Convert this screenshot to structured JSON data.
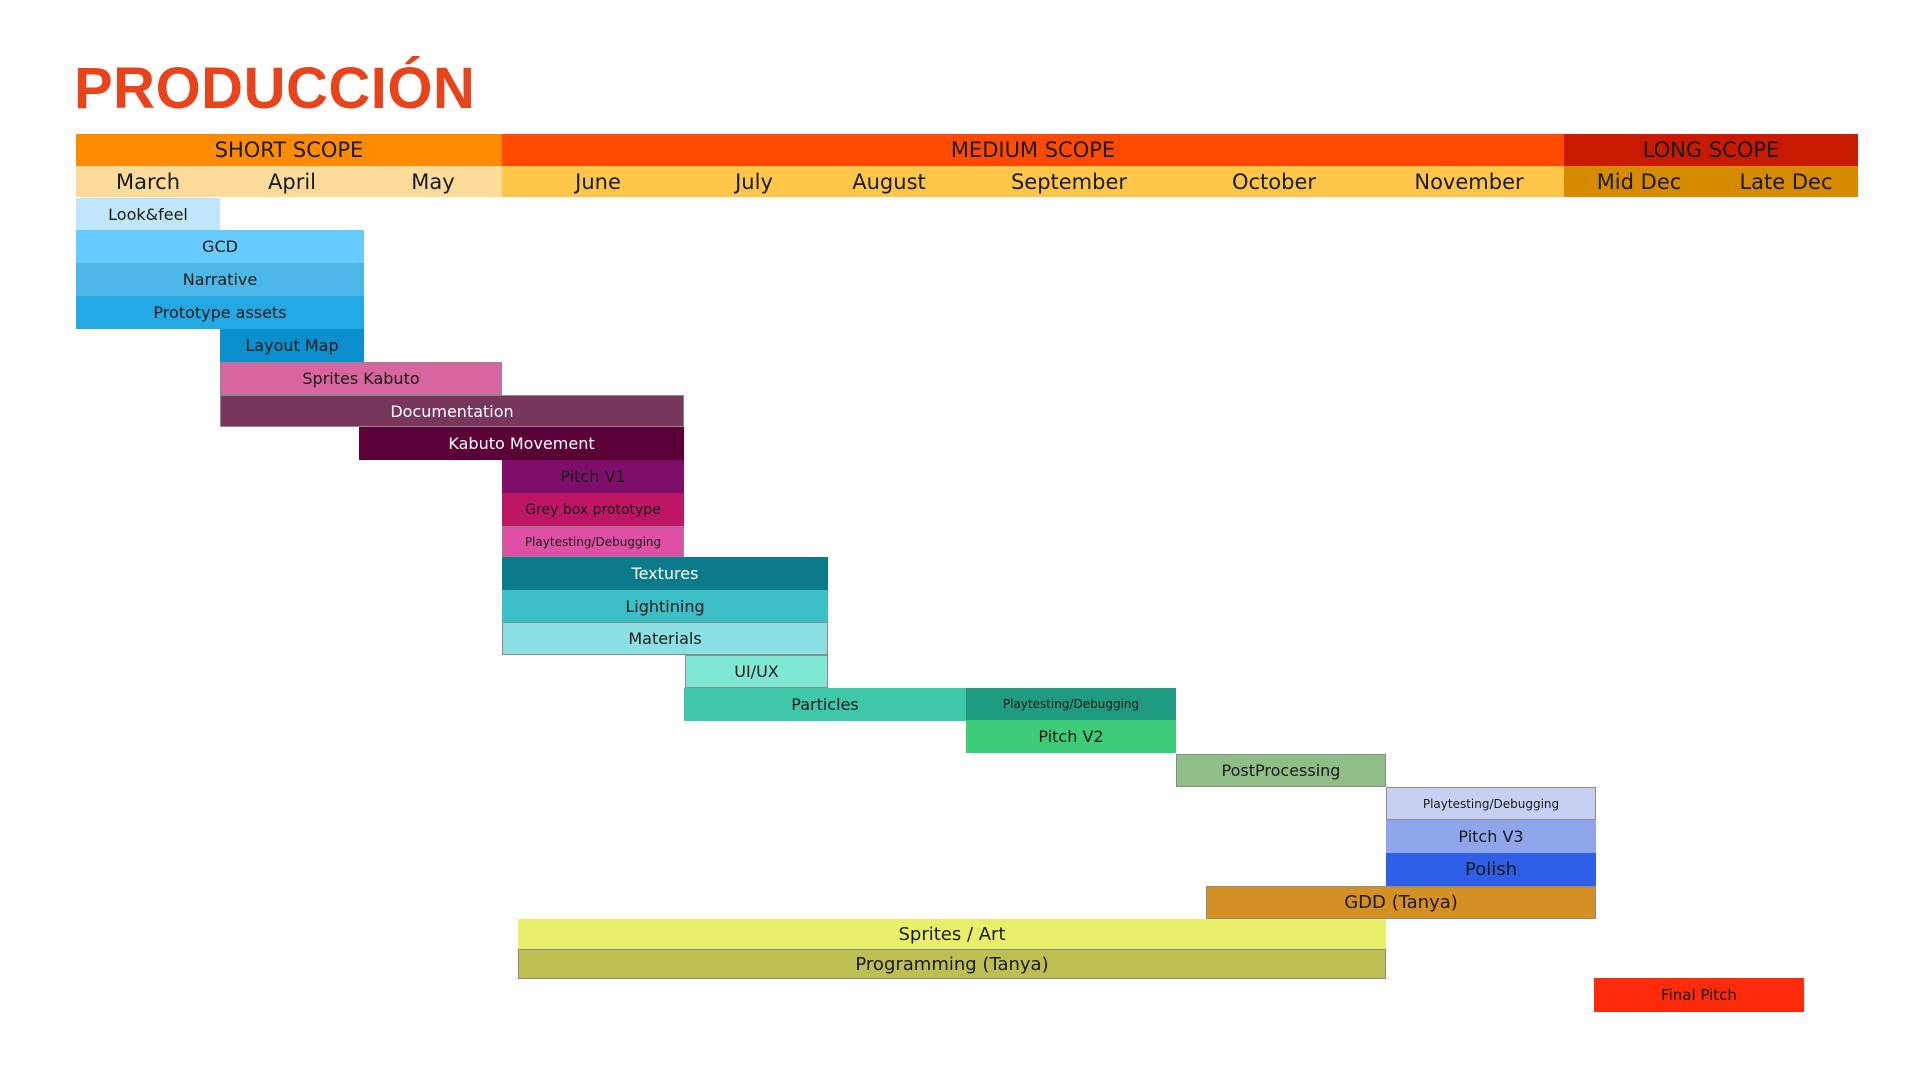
{
  "title": "PRODUCCIÓN",
  "scopes": [
    {
      "label": "SHORT SCOPE",
      "color": "#ff8c00"
    },
    {
      "label": "MEDIUM SCOPE",
      "color": "#ff4a00"
    },
    {
      "label": "LONG SCOPE",
      "color": "#c81a00"
    }
  ],
  "months": [
    {
      "label": "March",
      "color": "#fddc9a"
    },
    {
      "label": "April",
      "color": "#fddc9a"
    },
    {
      "label": "May",
      "color": "#fddc9a"
    },
    {
      "label": "June",
      "color": "#ffc64a"
    },
    {
      "label": "July",
      "color": "#ffc64a"
    },
    {
      "label": "August",
      "color": "#ffc64a"
    },
    {
      "label": "September",
      "color": "#ffc64a"
    },
    {
      "label": "October",
      "color": "#ffc64a"
    },
    {
      "label": "November",
      "color": "#ffc64a"
    },
    {
      "label": "Mid Dec",
      "color": "#d68a00"
    },
    {
      "label": "Late Dec",
      "color": "#d68a00"
    }
  ],
  "tasks": [
    {
      "label": "Look&feel",
      "color": "#bfe6fa",
      "text": "#1a1a1a"
    },
    {
      "label": "GCD",
      "color": "#66ccff",
      "text": "#1a1a1a"
    },
    {
      "label": "Narrative",
      "color": "#4bb8e8",
      "text": "#1a1a1a"
    },
    {
      "label": "Prototype assets",
      "color": "#23a8e3",
      "text": "#1a1a1a"
    },
    {
      "label": "Layout Map",
      "color": "#0a8fcc",
      "text": "#1a1a1a"
    },
    {
      "label": "Sprites Kabuto",
      "color": "#d8659f",
      "text": "#1a1a1a"
    },
    {
      "label": "Documentation",
      "color": "#79365d",
      "text": "#ffffff"
    },
    {
      "label": "Kabuto Movement",
      "color": "#5c0038",
      "text": "#ffffff"
    },
    {
      "label": "Pitch V1",
      "color": "#7e0e6a",
      "text": "#1a1a1a"
    },
    {
      "label": "Grey box prototype",
      "color": "#be1564",
      "text": "#1a1a1a"
    },
    {
      "label": "Playtesting/Debugging",
      "color": "#e04fa6",
      "text": "#1a1a1a"
    },
    {
      "label": "Textures",
      "color": "#0b7a8a",
      "text": "#ffffff"
    },
    {
      "label": "Lightining",
      "color": "#3dbfc8",
      "text": "#1a1a1a"
    },
    {
      "label": "Materials",
      "color": "#8be0e3",
      "text": "#1a1a1a"
    },
    {
      "label": "UI/UX",
      "color": "#7ee8d3",
      "text": "#1a1a1a"
    },
    {
      "label": "Particles",
      "color": "#3ec7a8",
      "text": "#1a1a1a"
    },
    {
      "label": "Playtesting/Debugging",
      "color": "#1f9c80",
      "text": "#1a1a1a"
    },
    {
      "label": "Pitch V2",
      "color": "#3ccc78",
      "text": "#1a1a1a"
    },
    {
      "label": "PostProcessing",
      "color": "#8fbf86",
      "text": "#1a1a1a"
    },
    {
      "label": "Playtesting/Debugging",
      "color": "#c6d0f3",
      "text": "#1a1a1a"
    },
    {
      "label": "Pitch V3",
      "color": "#8fa6ec",
      "text": "#1a1a1a"
    },
    {
      "label": "Polish",
      "color": "#2f5fe6",
      "text": "#1a1a1a"
    },
    {
      "label": "GDD (Tanya)",
      "color": "#d49022",
      "text": "#1a1a1a"
    },
    {
      "label": "Sprites / Art",
      "color": "#e8f06a",
      "text": "#1a1a1a"
    },
    {
      "label": "Programming (Tanya)",
      "color": "#bcc052",
      "text": "#1a1a1a"
    },
    {
      "label": "Final Pitch",
      "color": "#ff2a0a",
      "text": "#1a1a1a"
    }
  ]
}
